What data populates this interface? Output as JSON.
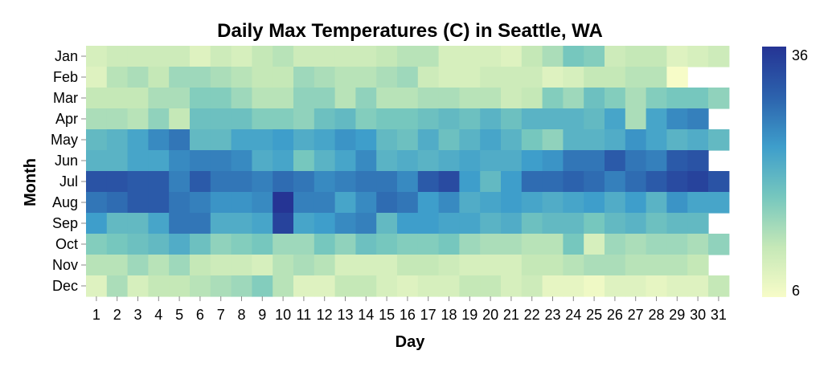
{
  "chart_data": {
    "type": "heatmap",
    "title": "Daily Max Temperatures (C) in Seattle, WA",
    "xlabel": "Day",
    "ylabel": "Month",
    "x": [
      "1",
      "2",
      "3",
      "4",
      "5",
      "6",
      "7",
      "8",
      "9",
      "10",
      "11",
      "12",
      "13",
      "14",
      "15",
      "16",
      "17",
      "18",
      "19",
      "20",
      "21",
      "22",
      "23",
      "24",
      "25",
      "26",
      "27",
      "28",
      "29",
      "30",
      "31"
    ],
    "y": [
      "Jan",
      "Feb",
      "Mar",
      "Apr",
      "May",
      "Jun",
      "Jul",
      "Aug",
      "Sep",
      "Oct",
      "Nov",
      "Dec"
    ],
    "values": [
      [
        10,
        11,
        11,
        11,
        11,
        9,
        11,
        10,
        12,
        13,
        11,
        11,
        11,
        11,
        12,
        13,
        13,
        10,
        10,
        10,
        9,
        12,
        14,
        18,
        17,
        11,
        12,
        12,
        9,
        10,
        11
      ],
      [
        9,
        13,
        14,
        12,
        15,
        15,
        14,
        13,
        12,
        12,
        15,
        14,
        13,
        13,
        14,
        15,
        11,
        10,
        10,
        11,
        11,
        11,
        9,
        10,
        12,
        12,
        13,
        13,
        6,
        null,
        null
      ],
      [
        12,
        12,
        12,
        14,
        14,
        17,
        17,
        15,
        13,
        13,
        16,
        16,
        13,
        16,
        13,
        13,
        14,
        14,
        13,
        13,
        11,
        12,
        17,
        15,
        19,
        17,
        14,
        17,
        18,
        18,
        16
      ],
      [
        14,
        14,
        13,
        16,
        12,
        19,
        19,
        19,
        17,
        17,
        16,
        19,
        20,
        17,
        18,
        18,
        19,
        20,
        19,
        21,
        19,
        21,
        21,
        21,
        20,
        23,
        14,
        23,
        26,
        27,
        null
      ],
      [
        20,
        21,
        23,
        26,
        28,
        20,
        20,
        23,
        23,
        24,
        22,
        23,
        25,
        24,
        20,
        19,
        22,
        19,
        21,
        23,
        21,
        18,
        16,
        21,
        21,
        22,
        25,
        23,
        21,
        22,
        20
      ],
      [
        21,
        21,
        23,
        23,
        26,
        27,
        27,
        26,
        22,
        23,
        18,
        21,
        23,
        26,
        21,
        22,
        21,
        22,
        23,
        22,
        22,
        24,
        25,
        28,
        28,
        31,
        28,
        27,
        31,
        32,
        null
      ],
      [
        32,
        32,
        31,
        31,
        27,
        31,
        28,
        28,
        27,
        29,
        28,
        26,
        27,
        28,
        28,
        26,
        31,
        33,
        24,
        20,
        24,
        29,
        29,
        30,
        29,
        27,
        29,
        31,
        33,
        34,
        32
      ],
      [
        28,
        29,
        31,
        31,
        28,
        27,
        25,
        25,
        26,
        36,
        27,
        27,
        23,
        26,
        29,
        28,
        24,
        26,
        22,
        23,
        24,
        23,
        22,
        23,
        24,
        22,
        24,
        21,
        25,
        23,
        23
      ],
      [
        24,
        20,
        20,
        23,
        28,
        28,
        22,
        22,
        23,
        34,
        23,
        24,
        26,
        27,
        20,
        24,
        24,
        23,
        23,
        21,
        22,
        19,
        20,
        20,
        18,
        20,
        21,
        19,
        20,
        20,
        null
      ],
      [
        17,
        18,
        19,
        20,
        22,
        19,
        16,
        17,
        18,
        15,
        15,
        18,
        16,
        19,
        18,
        17,
        17,
        18,
        15,
        14,
        14,
        13,
        13,
        18,
        10,
        15,
        14,
        15,
        15,
        14,
        16
      ],
      [
        13,
        13,
        15,
        13,
        15,
        12,
        11,
        11,
        10,
        13,
        14,
        13,
        10,
        10,
        10,
        12,
        12,
        11,
        10,
        10,
        10,
        12,
        12,
        13,
        14,
        14,
        13,
        13,
        13,
        12,
        null
      ],
      [
        9,
        14,
        10,
        12,
        12,
        13,
        14,
        15,
        17,
        13,
        9,
        9,
        12,
        12,
        10,
        9,
        10,
        10,
        12,
        12,
        10,
        11,
        8,
        8,
        7,
        9,
        9,
        8,
        9,
        9,
        12
      ]
    ],
    "color_scale": {
      "min": 6,
      "max": 36,
      "stops": [
        "#f7fcc8",
        "#c5e8b7",
        "#76c7be",
        "#3e9ecb",
        "#2c62ad",
        "#253494"
      ]
    },
    "legend": {
      "placement": "right",
      "min_label": "6",
      "max_label": "36"
    },
    "grid": false
  }
}
